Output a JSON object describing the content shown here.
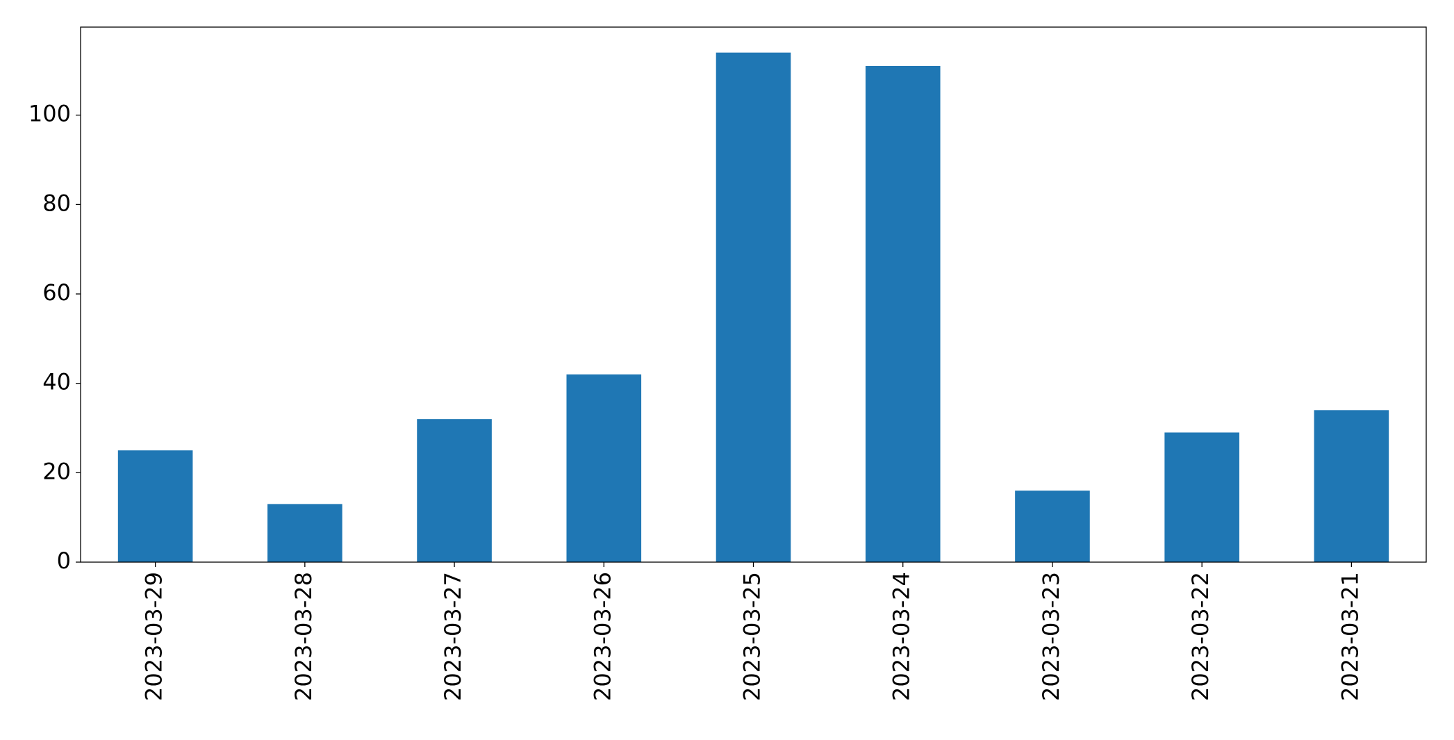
{
  "chart_data": {
    "type": "bar",
    "categories": [
      "2023-03-29",
      "2023-03-28",
      "2023-03-27",
      "2023-03-26",
      "2023-03-25",
      "2023-03-24",
      "2023-03-23",
      "2023-03-22",
      "2023-03-21"
    ],
    "values": [
      25,
      13,
      32,
      42,
      114,
      111,
      16,
      29,
      34
    ],
    "color": "#1f77b4",
    "ylim": [
      0,
      119.7
    ],
    "yticks": [
      0,
      20,
      40,
      60,
      80,
      100
    ],
    "grid": false
  }
}
